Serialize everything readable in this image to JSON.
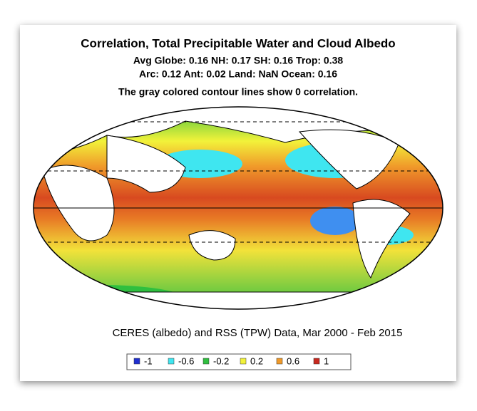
{
  "header": {
    "title": "Correlation, Total Precipitable Water and Cloud Albedo",
    "stats": [
      "Avg Globe: 0.16  NH: 0.17  SH: 0.16  Trop: 0.38",
      "Arc: 0.12  Ant: 0.02  Land: NaN Ocean: 0.16"
    ],
    "note": "The gray colored contour lines show 0 correlation."
  },
  "source": "CERES (albedo) and RSS (TPW) Data, Mar 2000 - Feb 2015",
  "legend": [
    {
      "label": "-1",
      "color": "#1f2fd0"
    },
    {
      "label": "-0.6",
      "color": "#3fe6f0"
    },
    {
      "label": "-0.2",
      "color": "#2fbf3f"
    },
    {
      "label": "0.2",
      "color": "#f2f23a"
    },
    {
      "label": "0.6",
      "color": "#f09a2a"
    },
    {
      "label": "1",
      "color": "#c8281e"
    }
  ]
}
